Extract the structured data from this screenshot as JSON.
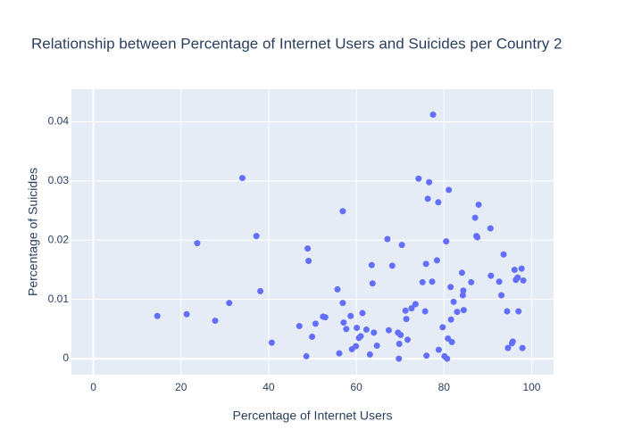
{
  "chart_data": {
    "type": "scatter",
    "title": "Relationship between Percentage of Internet Users and Suicides per Country 2",
    "xlabel": "Percentage of Internet Users",
    "ylabel": "Percentage of Suicides",
    "xlim": [
      -5,
      105
    ],
    "ylim": [
      -0.0027,
      0.0455
    ],
    "x_ticks": [
      0,
      20,
      40,
      60,
      80,
      100
    ],
    "y_ticks": [
      0,
      0.01,
      0.02,
      0.03,
      0.04
    ],
    "x_tick_labels": [
      "0",
      "20",
      "40",
      "60",
      "80",
      "100"
    ],
    "y_tick_labels": [
      "0",
      "0.01",
      "0.02",
      "0.03",
      "0.04"
    ],
    "grid": true,
    "colors": {
      "marker": "#636efa",
      "plot_bg": "#e5ecf6",
      "grid": "#ffffff",
      "text": "#2a3f5f"
    },
    "points": [
      {
        "x": 14.6,
        "y": 0.0072
      },
      {
        "x": 21.3,
        "y": 0.0075
      },
      {
        "x": 23.7,
        "y": 0.0195
      },
      {
        "x": 27.8,
        "y": 0.0064
      },
      {
        "x": 31.0,
        "y": 0.0094
      },
      {
        "x": 34.0,
        "y": 0.0305
      },
      {
        "x": 37.2,
        "y": 0.0207
      },
      {
        "x": 38.1,
        "y": 0.0114
      },
      {
        "x": 40.7,
        "y": 0.0027
      },
      {
        "x": 47.0,
        "y": 0.0055
      },
      {
        "x": 48.6,
        "y": 0.0004
      },
      {
        "x": 48.9,
        "y": 0.0186
      },
      {
        "x": 49.1,
        "y": 0.0165
      },
      {
        "x": 49.9,
        "y": 0.0037
      },
      {
        "x": 50.7,
        "y": 0.0059
      },
      {
        "x": 52.4,
        "y": 0.0071
      },
      {
        "x": 52.9,
        "y": 0.007
      },
      {
        "x": 55.7,
        "y": 0.0117
      },
      {
        "x": 56.1,
        "y": 0.0009
      },
      {
        "x": 56.9,
        "y": 0.0249
      },
      {
        "x": 56.9,
        "y": 0.0094
      },
      {
        "x": 57.1,
        "y": 0.0061
      },
      {
        "x": 57.7,
        "y": 0.005
      },
      {
        "x": 58.7,
        "y": 0.0072
      },
      {
        "x": 59.0,
        "y": 0.0016
      },
      {
        "x": 59.9,
        "y": 0.0021
      },
      {
        "x": 60.1,
        "y": 0.0052
      },
      {
        "x": 60.6,
        "y": 0.0035
      },
      {
        "x": 61.0,
        "y": 0.0038
      },
      {
        "x": 61.4,
        "y": 0.0077
      },
      {
        "x": 62.3,
        "y": 0.0049
      },
      {
        "x": 63.1,
        "y": 0.0007
      },
      {
        "x": 63.5,
        "y": 0.0158
      },
      {
        "x": 63.7,
        "y": 0.0127
      },
      {
        "x": 64.0,
        "y": 0.0044
      },
      {
        "x": 64.7,
        "y": 0.0022
      },
      {
        "x": 67.1,
        "y": 0.0202
      },
      {
        "x": 67.4,
        "y": 0.0048
      },
      {
        "x": 68.2,
        "y": 0.0157
      },
      {
        "x": 69.5,
        "y": 0.0044
      },
      {
        "x": 69.7,
        "y": 0.0
      },
      {
        "x": 69.8,
        "y": 0.0025
      },
      {
        "x": 70.1,
        "y": 0.004
      },
      {
        "x": 70.4,
        "y": 0.0192
      },
      {
        "x": 71.2,
        "y": 0.0081
      },
      {
        "x": 71.4,
        "y": 0.0067
      },
      {
        "x": 71.7,
        "y": 0.0032
      },
      {
        "x": 72.6,
        "y": 0.0085
      },
      {
        "x": 73.5,
        "y": 0.0092
      },
      {
        "x": 74.2,
        "y": 0.0304
      },
      {
        "x": 75.1,
        "y": 0.0129
      },
      {
        "x": 75.7,
        "y": 0.008
      },
      {
        "x": 75.9,
        "y": 0.016
      },
      {
        "x": 76.0,
        "y": 0.0005
      },
      {
        "x": 76.3,
        "y": 0.027
      },
      {
        "x": 76.6,
        "y": 0.0298
      },
      {
        "x": 77.3,
        "y": 0.013
      },
      {
        "x": 77.5,
        "y": 0.0412
      },
      {
        "x": 78.4,
        "y": 0.0166
      },
      {
        "x": 78.7,
        "y": 0.0264
      },
      {
        "x": 78.8,
        "y": 0.0015
      },
      {
        "x": 79.7,
        "y": 0.0053
      },
      {
        "x": 80.1,
        "y": 0.0004
      },
      {
        "x": 80.5,
        "y": 0.0198
      },
      {
        "x": 80.7,
        "y": 0.0
      },
      {
        "x": 80.9,
        "y": 0.0034
      },
      {
        "x": 81.1,
        "y": 0.0285
      },
      {
        "x": 81.5,
        "y": 0.0121
      },
      {
        "x": 81.6,
        "y": 0.0066
      },
      {
        "x": 81.8,
        "y": 0.0028
      },
      {
        "x": 82.2,
        "y": 0.0096
      },
      {
        "x": 83.0,
        "y": 0.0079
      },
      {
        "x": 84.1,
        "y": 0.0145
      },
      {
        "x": 84.3,
        "y": 0.0107
      },
      {
        "x": 84.4,
        "y": 0.0115
      },
      {
        "x": 84.5,
        "y": 0.0082
      },
      {
        "x": 86.2,
        "y": 0.0129
      },
      {
        "x": 87.1,
        "y": 0.0238
      },
      {
        "x": 87.4,
        "y": 0.0207
      },
      {
        "x": 87.6,
        "y": 0.0205
      },
      {
        "x": 87.9,
        "y": 0.026
      },
      {
        "x": 90.6,
        "y": 0.022
      },
      {
        "x": 90.7,
        "y": 0.014
      },
      {
        "x": 92.6,
        "y": 0.013
      },
      {
        "x": 93.1,
        "y": 0.0107
      },
      {
        "x": 93.6,
        "y": 0.0176
      },
      {
        "x": 94.4,
        "y": 0.008
      },
      {
        "x": 94.6,
        "y": 0.0018
      },
      {
        "x": 95.5,
        "y": 0.0026
      },
      {
        "x": 95.7,
        "y": 0.0029
      },
      {
        "x": 96.1,
        "y": 0.015
      },
      {
        "x": 96.4,
        "y": 0.0133
      },
      {
        "x": 96.8,
        "y": 0.0137
      },
      {
        "x": 97.0,
        "y": 0.008
      },
      {
        "x": 97.7,
        "y": 0.0152
      },
      {
        "x": 97.9,
        "y": 0.0018
      },
      {
        "x": 98.1,
        "y": 0.0132
      }
    ]
  }
}
